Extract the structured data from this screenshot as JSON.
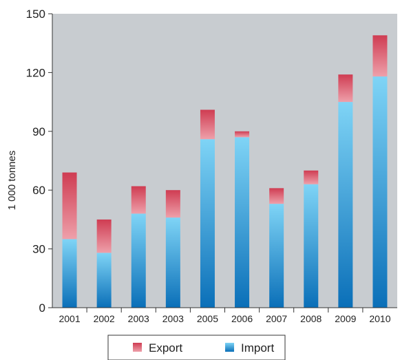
{
  "chart_data": {
    "type": "bar",
    "stacked": true,
    "title": "",
    "xlabel": "",
    "ylabel": "1 000 tonnes",
    "ylim": [
      0,
      150
    ],
    "yticks": [
      0,
      30,
      60,
      90,
      120,
      150
    ],
    "grid": false,
    "legend_position": "bottom",
    "categories": [
      "2001",
      "2002",
      "2003",
      "2003",
      "2005",
      "2006",
      "2007",
      "2008",
      "2009",
      "2010"
    ],
    "series": [
      {
        "name": "Import",
        "values": [
          35,
          28,
          48,
          46,
          86,
          87,
          53,
          63,
          105,
          118
        ],
        "color": "#1f95d6"
      },
      {
        "name": "Export",
        "values": [
          34,
          17,
          14,
          14,
          15,
          3,
          8,
          7,
          14,
          21
        ],
        "color": "#d9465b"
      }
    ],
    "plot_background": "#c8ccd0"
  },
  "legend": {
    "items": [
      {
        "label": "Export"
      },
      {
        "label": "Import"
      }
    ]
  }
}
